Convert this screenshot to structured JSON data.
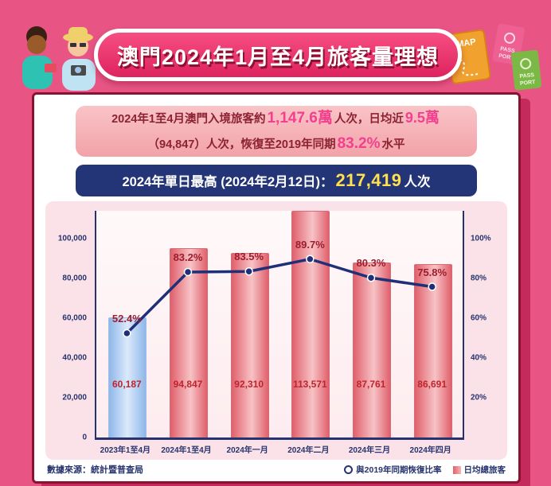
{
  "header": {
    "title": "澳門2024年1月至4月旅客量理想"
  },
  "decor": {
    "map_label": "MAP",
    "passport_line1": "PASS",
    "passport_line2": "PORT"
  },
  "summary": {
    "line1_pre": "2024年1至4月澳門入境旅客約",
    "line1_hl1": "1,147.6萬",
    "line1_mid": "人次，日均近",
    "line1_hl2": "9.5萬",
    "line2_pre": "（94,847）人次，恢復至2019年同期",
    "line2_hl": "83.2%",
    "line2_post": "水平"
  },
  "peak": {
    "label": "2024年單日最高 (2024年2月12日)：",
    "value": "217,419",
    "unit": "人次"
  },
  "source": "數據來源：統計暨普查局",
  "legend": {
    "line": "與2019年同期恢復比率",
    "bar": "日均總旅客"
  },
  "colors": {
    "background": "#e85585",
    "banner": "#ef3a6e",
    "card_border": "#8c1030",
    "summary_bg": "#f6b3b9",
    "highlight_pink": "#f2408f",
    "peak_bg": "#233577",
    "peak_value_yellow": "#ffe14d",
    "bar_blue": "#a9c8ef",
    "bar_red": "#e4737e",
    "line_navy": "#1f2f78",
    "value_label_red": "#c0242c",
    "axis_navy": "#27336e",
    "panel_pink": "#fbe2e8"
  },
  "chart_data": {
    "type": "bar+line",
    "categories": [
      "2023年1至4月",
      "2024年1至4月",
      "2024年一月",
      "2024年二月",
      "2024年三月",
      "2024年四月"
    ],
    "series": [
      {
        "name": "日均總旅客",
        "type": "bar",
        "values": [
          60187,
          94847,
          92310,
          113571,
          87761,
          86691
        ],
        "labels": [
          "60,187",
          "94,847",
          "92,310",
          "113,571",
          "87,761",
          "86,691"
        ]
      },
      {
        "name": "與2019年同期恢復比率",
        "type": "line",
        "values": [
          52.4,
          83.2,
          83.5,
          89.7,
          80.3,
          75.8
        ],
        "labels": [
          "52.4%",
          "83.2%",
          "83.5%",
          "89.7%",
          "80.3%",
          "75.8%"
        ]
      }
    ],
    "left_axis": {
      "ticks": [
        "0",
        "20,000",
        "40,000",
        "60,000",
        "80,000",
        "100,000"
      ],
      "max": 100000,
      "plot_top": 114000
    },
    "right_axis": {
      "ticks": [
        "20%",
        "40%",
        "60%",
        "80%",
        "100%"
      ],
      "max": 100
    },
    "grid": false,
    "legend_position": "bottom-right"
  }
}
